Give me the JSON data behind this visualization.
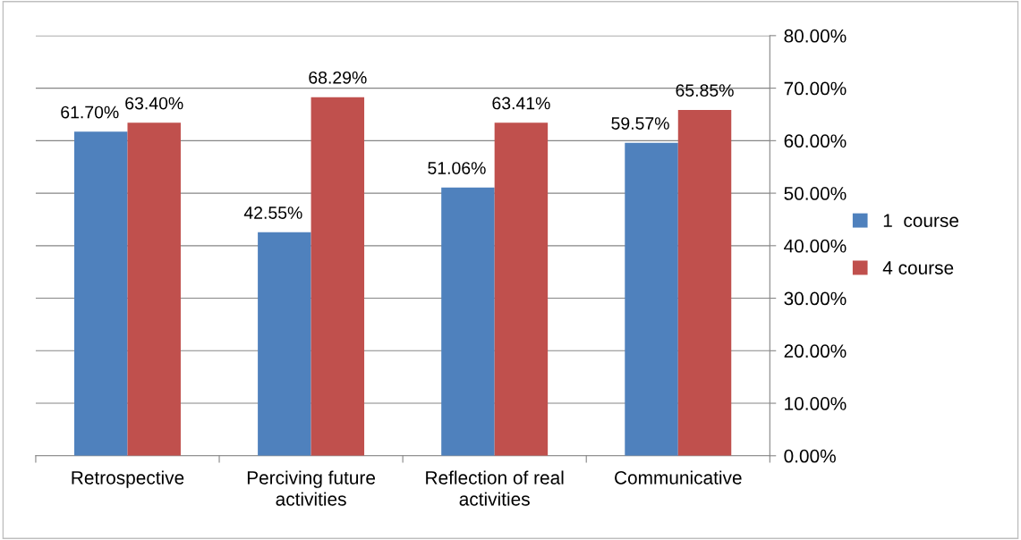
{
  "chart_data": {
    "type": "bar",
    "categories": [
      "Retrospective",
      "Perciving future\nactivities",
      "Reflection of real\nactivities",
      "Communicative"
    ],
    "series": [
      {
        "name": "1  course",
        "color": "#4f81bd",
        "values": [
          61.7,
          42.55,
          51.06,
          59.57
        ],
        "value_labels": [
          "61.70%",
          "42.55%",
          "51.06%",
          "59.57%"
        ]
      },
      {
        "name": "4 course",
        "color": "#c0504d",
        "values": [
          63.4,
          68.29,
          63.41,
          65.85
        ],
        "value_labels": [
          "63.40%",
          "68.29%",
          "63.41%",
          "65.85%"
        ]
      }
    ],
    "ylim": [
      0,
      80
    ],
    "yticks": [
      {
        "value": 0,
        "label": "0.00%"
      },
      {
        "value": 10,
        "label": "10.00%"
      },
      {
        "value": 20,
        "label": "20.00%"
      },
      {
        "value": 30,
        "label": "30.00%"
      },
      {
        "value": 40,
        "label": "40.00%"
      },
      {
        "value": 50,
        "label": "50.00%"
      },
      {
        "value": 60,
        "label": "60.00%"
      },
      {
        "value": 70,
        "label": "70.00%"
      },
      {
        "value": 80,
        "label": "80.00%"
      }
    ],
    "grid": "y",
    "legend": "right"
  }
}
